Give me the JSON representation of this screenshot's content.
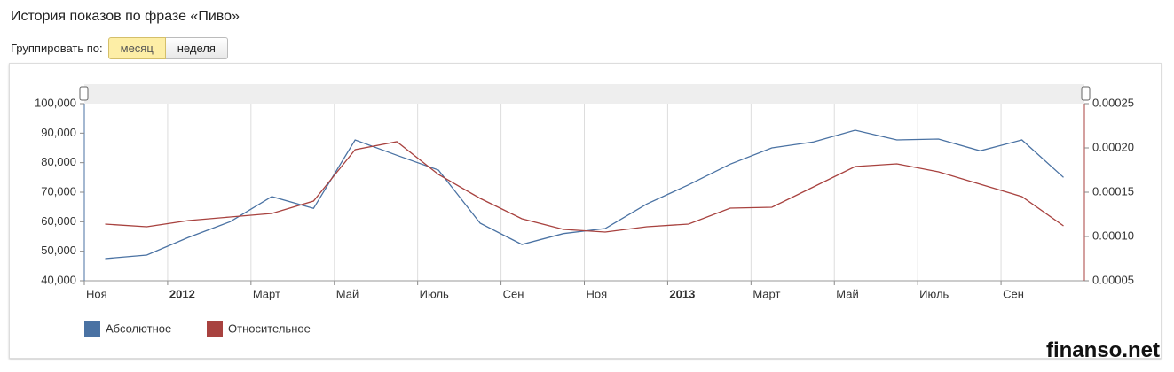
{
  "header": {
    "title": "История показов по фразе «Пиво»"
  },
  "controls": {
    "label": "Группировать по:",
    "buttons": [
      "месяц",
      "неделя"
    ]
  },
  "chart_data": {
    "type": "line",
    "categories": [
      "Ноя",
      null,
      "2012",
      null,
      "Март",
      null,
      "Май",
      null,
      "Июль",
      null,
      "Сен",
      null,
      "Ноя",
      null,
      "2013",
      null,
      "Март",
      null,
      "Май",
      null,
      "Июль",
      null,
      "Сен",
      null
    ],
    "series": [
      {
        "name": "Абсолютное",
        "color": "#4a72a3",
        "values": [
          47500,
          48700,
          54700,
          60000,
          68500,
          64500,
          87700,
          82500,
          77500,
          59500,
          52300,
          56000,
          57700,
          66000,
          72500,
          79500,
          85000,
          87000,
          91000,
          87700,
          88000,
          84000,
          87700,
          75000
        ]
      },
      {
        "name": "Относительное",
        "color": "#a8423f",
        "axis": "y2",
        "values": [
          0.000114,
          0.000111,
          0.000118,
          0.000122,
          0.000126,
          0.00014,
          0.000198,
          0.000207,
          0.00017,
          0.000143,
          0.00012,
          0.000108,
          0.000105,
          0.000111,
          0.000114,
          0.000132,
          0.000133,
          0.000156,
          0.000179,
          0.000182,
          0.000173,
          0.000159,
          0.000145,
          0.000112
        ]
      }
    ],
    "ylim": [
      40000,
      100000
    ],
    "yticks": [
      {
        "value": 40000,
        "label": "40,000"
      },
      {
        "value": 50000,
        "label": "50,000"
      },
      {
        "value": 60000,
        "label": "60,000"
      },
      {
        "value": 70000,
        "label": "70,000"
      },
      {
        "value": 80000,
        "label": "80,000"
      },
      {
        "value": 90000,
        "label": "90,000"
      },
      {
        "value": 100000,
        "label": "100,000"
      }
    ],
    "y2lim": [
      5e-05,
      0.00025
    ],
    "y2ticks": [
      {
        "value": 5e-05,
        "label": "0.00005"
      },
      {
        "value": 0.0001,
        "label": "0.00010"
      },
      {
        "value": 0.00015,
        "label": "0.00015"
      },
      {
        "value": 0.0002,
        "label": "0.00020"
      },
      {
        "value": 0.00025,
        "label": "0.00025"
      }
    ],
    "grid": true,
    "legend": "bottom-left"
  },
  "watermark": "finanso.net"
}
